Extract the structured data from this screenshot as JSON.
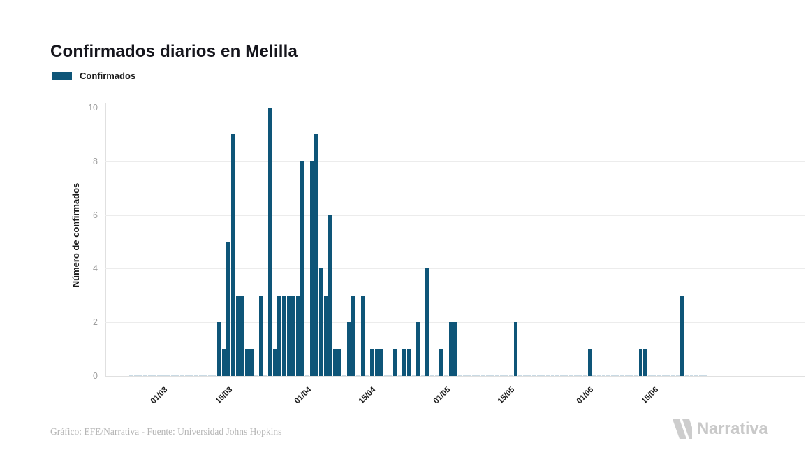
{
  "title": "Confirmados diarios en Melilla",
  "legend": {
    "label": "Confirmados"
  },
  "footer": {
    "credit": "Gráfico: EFE/Narrativa - Fuente: Universidad Johns Hopkins"
  },
  "branding": {
    "wordmark": "Narrativa"
  },
  "chart_data": {
    "type": "bar",
    "title": "Confirmados diarios en Melilla",
    "xlabel": "",
    "ylabel": "Número de confirmados",
    "series_name": "Confirmados",
    "bar_color": "#0e5578",
    "zero_mark_color": "#c9dae4",
    "grid": "horizontal",
    "legend_position": "top-left",
    "ylim": [
      0,
      10
    ],
    "yticks": [
      0,
      2,
      4,
      6,
      8,
      10
    ],
    "xticks": [
      "01/03",
      "15/03",
      "01/04",
      "15/04",
      "01/05",
      "15/05",
      "01/06",
      "15/06"
    ],
    "dates": [
      "23/02",
      "24/02",
      "25/02",
      "26/02",
      "27/02",
      "28/02",
      "29/02",
      "01/03",
      "02/03",
      "03/03",
      "04/03",
      "05/03",
      "06/03",
      "07/03",
      "08/03",
      "09/03",
      "10/03",
      "11/03",
      "12/03",
      "13/03",
      "14/03",
      "15/03",
      "16/03",
      "17/03",
      "18/03",
      "19/03",
      "20/03",
      "21/03",
      "22/03",
      "23/03",
      "24/03",
      "25/03",
      "26/03",
      "27/03",
      "28/03",
      "29/03",
      "30/03",
      "31/03",
      "01/04",
      "02/04",
      "03/04",
      "04/04",
      "05/04",
      "06/04",
      "07/04",
      "08/04",
      "09/04",
      "10/04",
      "11/04",
      "12/04",
      "13/04",
      "14/04",
      "15/04",
      "16/04",
      "17/04",
      "18/04",
      "19/04",
      "20/04",
      "21/04",
      "22/04",
      "23/04",
      "24/04",
      "25/04",
      "26/04",
      "27/04",
      "28/04",
      "29/04",
      "30/04",
      "01/05",
      "02/05",
      "03/05",
      "04/05",
      "05/05",
      "06/05",
      "07/05",
      "08/05",
      "09/05",
      "10/05",
      "11/05",
      "12/05",
      "13/05",
      "14/05",
      "15/05",
      "16/05",
      "17/05",
      "18/05",
      "19/05",
      "20/05",
      "21/05",
      "22/05",
      "23/05",
      "24/05",
      "25/05",
      "26/05",
      "27/05",
      "28/05",
      "29/05",
      "30/05",
      "31/05",
      "01/06",
      "02/06",
      "03/06",
      "04/06",
      "05/06",
      "06/06",
      "07/06",
      "08/06",
      "09/06",
      "10/06",
      "11/06",
      "12/06",
      "13/06",
      "14/06",
      "15/06",
      "16/06",
      "17/06",
      "18/06",
      "19/06",
      "20/06",
      "21/06",
      "22/06",
      "23/06",
      "24/06",
      "25/06",
      "26/06"
    ],
    "values": [
      0,
      0,
      0,
      0,
      0,
      0,
      0,
      0,
      0,
      0,
      0,
      0,
      0,
      0,
      0,
      0,
      0,
      0,
      0,
      2,
      1,
      5,
      9,
      3,
      3,
      1,
      1,
      0,
      3,
      0,
      10,
      1,
      3,
      3,
      3,
      3,
      3,
      8,
      0,
      8,
      9,
      4,
      3,
      6,
      1,
      1,
      0,
      2,
      3,
      0,
      3,
      0,
      1,
      1,
      1,
      0,
      0,
      1,
      0,
      1,
      1,
      0,
      2,
      0,
      4,
      0,
      0,
      1,
      0,
      2,
      2,
      0,
      0,
      0,
      0,
      0,
      0,
      0,
      0,
      0,
      0,
      0,
      0,
      2,
      0,
      0,
      0,
      0,
      0,
      0,
      0,
      0,
      0,
      0,
      0,
      0,
      0,
      0,
      0,
      1,
      0,
      0,
      0,
      0,
      0,
      0,
      0,
      0,
      0,
      0,
      1,
      1,
      0,
      0,
      0,
      0,
      0,
      0,
      0,
      3,
      0,
      0,
      0,
      0,
      0
    ]
  }
}
